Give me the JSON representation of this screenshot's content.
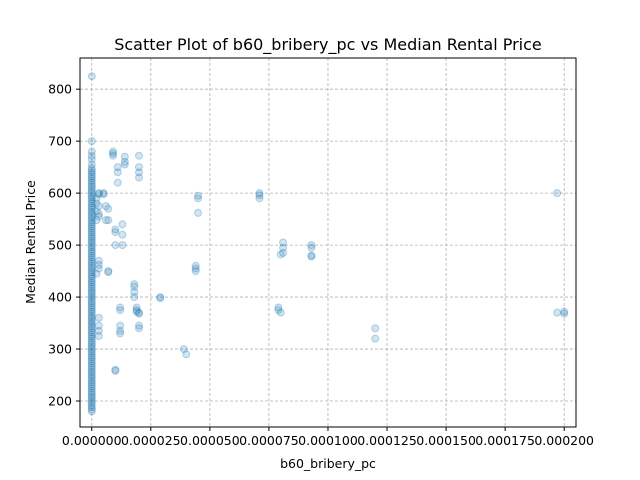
{
  "chart_data": {
    "type": "scatter",
    "title": "Scatter Plot of b60_bribery_pc vs Median Rental Price",
    "xlabel": "b60_bribery_pc",
    "ylabel": "Median Rental Price",
    "xlim": [
      -4.98e-06,
      0.000205
    ],
    "ylim": [
      150,
      860
    ],
    "grid": true,
    "grid_style": "dashed",
    "x_ticks": [
      0.0,
      2.5e-05,
      5e-05,
      7.5e-05,
      0.0001,
      0.000125,
      0.00015,
      0.000175,
      0.0002
    ],
    "x_tick_labels": [
      "0.000000",
      "0.000025",
      "0.000050",
      "0.000075",
      "0.000100",
      "0.000125",
      "0.000150",
      "0.000175",
      "0.000200"
    ],
    "y_ticks": [
      200,
      300,
      400,
      500,
      600,
      700,
      800
    ],
    "y_tick_labels": [
      "200",
      "300",
      "400",
      "500",
      "600",
      "700",
      "800"
    ],
    "marker_color": "#1f77b4",
    "marker_alpha": 0.2,
    "points": [
      [
        0.0,
        825
      ],
      [
        0.0,
        700
      ],
      [
        0.0,
        680
      ],
      [
        0.0,
        672
      ],
      [
        0.0,
        665
      ],
      [
        0.0,
        655
      ],
      [
        3e-06,
        600
      ],
      [
        3e-06,
        598
      ],
      [
        2e-06,
        590
      ],
      [
        2e-06,
        580
      ],
      [
        3e-06,
        575
      ],
      [
        2e-06,
        565
      ],
      [
        3e-06,
        560
      ],
      [
        3e-06,
        555
      ],
      [
        2e-06,
        548
      ],
      [
        3e-06,
        470
      ],
      [
        3e-06,
        462
      ],
      [
        3e-06,
        455
      ],
      [
        2e-06,
        445
      ],
      [
        3e-06,
        360
      ],
      [
        3e-06,
        345
      ],
      [
        3e-06,
        335
      ],
      [
        3e-06,
        325
      ],
      [
        5e-06,
        600
      ],
      [
        5e-06,
        598
      ],
      [
        6e-06,
        575
      ],
      [
        7e-06,
        570
      ],
      [
        7e-06,
        548
      ],
      [
        6e-06,
        548
      ],
      [
        7e-06,
        450
      ],
      [
        7e-06,
        448
      ],
      [
        9e-06,
        680
      ],
      [
        9e-06,
        676
      ],
      [
        9e-06,
        672
      ],
      [
        1e-05,
        530
      ],
      [
        1e-05,
        525
      ],
      [
        1e-05,
        500
      ],
      [
        1.1e-05,
        650
      ],
      [
        1.1e-05,
        640
      ],
      [
        1.1e-05,
        620
      ],
      [
        1e-05,
        260
      ],
      [
        1e-05,
        258
      ],
      [
        1.2e-05,
        380
      ],
      [
        1.2e-05,
        375
      ],
      [
        1.2e-05,
        345
      ],
      [
        1.2e-05,
        335
      ],
      [
        1.2e-05,
        330
      ],
      [
        1.3e-05,
        540
      ],
      [
        1.3e-05,
        520
      ],
      [
        1.3e-05,
        500
      ],
      [
        1.4e-05,
        670
      ],
      [
        1.4e-05,
        660
      ],
      [
        1.4e-05,
        655
      ],
      [
        1.8e-05,
        425
      ],
      [
        1.8e-05,
        420
      ],
      [
        1.8e-05,
        410
      ],
      [
        1.8e-05,
        400
      ],
      [
        1.9e-05,
        380
      ],
      [
        1.9e-05,
        375
      ],
      [
        1.9e-05,
        372
      ],
      [
        2e-05,
        370
      ],
      [
        2e-05,
        368
      ],
      [
        2e-05,
        345
      ],
      [
        2e-05,
        340
      ],
      [
        2e-05,
        672
      ],
      [
        2e-05,
        650
      ],
      [
        2e-05,
        640
      ],
      [
        2e-05,
        630
      ],
      [
        2.9e-05,
        400
      ],
      [
        2.9e-05,
        398
      ],
      [
        3.9e-05,
        300
      ],
      [
        4e-05,
        290
      ],
      [
        4.4e-05,
        460
      ],
      [
        4.4e-05,
        455
      ],
      [
        4.4e-05,
        450
      ],
      [
        4.5e-05,
        595
      ],
      [
        4.5e-05,
        590
      ],
      [
        4.5e-05,
        562
      ],
      [
        7.1e-05,
        600
      ],
      [
        7.1e-05,
        596
      ],
      [
        7.1e-05,
        590
      ],
      [
        7.9e-05,
        380
      ],
      [
        7.9e-05,
        375
      ],
      [
        8e-05,
        370
      ],
      [
        8.1e-05,
        505
      ],
      [
        8.1e-05,
        495
      ],
      [
        8.1e-05,
        485
      ],
      [
        8e-05,
        482
      ],
      [
        9.3e-05,
        500
      ],
      [
        9.3e-05,
        495
      ],
      [
        9.3e-05,
        480
      ],
      [
        9.3e-05,
        478
      ],
      [
        0.00012,
        340
      ],
      [
        0.00012,
        320
      ],
      [
        0.000197,
        600
      ],
      [
        0.000197,
        370
      ],
      [
        0.0002,
        372
      ],
      [
        0.0002,
        368
      ]
    ]
  }
}
